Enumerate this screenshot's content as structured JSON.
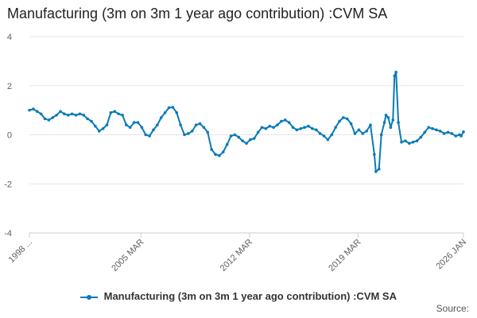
{
  "title": "Manufacturing (3m on 3m 1 year ago contribution) :CVM SA",
  "source_label": "Source:",
  "colors": {
    "series": "#0a7ab8",
    "grid": "#e6e6e6",
    "axis": "#cccccc",
    "text": "#606060"
  },
  "chart_data": {
    "type": "line",
    "title": "Manufacturing (3m on 3m 1 year ago contribution) :CVM SA",
    "xlabel": "",
    "ylabel": "",
    "ylim": [
      -4,
      4
    ],
    "yticks": [
      -4,
      -2,
      0,
      2,
      4
    ],
    "xlim": [
      1998.0,
      2026.0
    ],
    "xticks": [
      {
        "x": 1998.0,
        "label": "1998 ..."
      },
      {
        "x": 2005.2,
        "label": "2005 MAR"
      },
      {
        "x": 2012.2,
        "label": "2012 MAR"
      },
      {
        "x": 2019.2,
        "label": "2019 MAR"
      },
      {
        "x": 2026.0,
        "label": "2026 JAN"
      }
    ],
    "grid": "horizontal",
    "legend": "bottom",
    "series": [
      {
        "name": "Manufacturing (3m on 3m 1 year ago contribution) :CVM SA",
        "points": [
          [
            1998.0,
            1.0
          ],
          [
            1998.25,
            1.05
          ],
          [
            1998.5,
            0.95
          ],
          [
            1998.75,
            0.85
          ],
          [
            1999.0,
            0.65
          ],
          [
            1999.25,
            0.6
          ],
          [
            1999.5,
            0.7
          ],
          [
            1999.75,
            0.8
          ],
          [
            2000.0,
            0.95
          ],
          [
            2000.25,
            0.85
          ],
          [
            2000.5,
            0.8
          ],
          [
            2000.75,
            0.85
          ],
          [
            2001.0,
            0.8
          ],
          [
            2001.25,
            0.85
          ],
          [
            2001.5,
            0.8
          ],
          [
            2001.75,
            0.65
          ],
          [
            2002.0,
            0.55
          ],
          [
            2002.25,
            0.35
          ],
          [
            2002.5,
            0.15
          ],
          [
            2002.75,
            0.25
          ],
          [
            2003.0,
            0.4
          ],
          [
            2003.25,
            0.9
          ],
          [
            2003.5,
            0.95
          ],
          [
            2003.75,
            0.85
          ],
          [
            2004.0,
            0.8
          ],
          [
            2004.25,
            0.4
          ],
          [
            2004.5,
            0.3
          ],
          [
            2004.75,
            0.5
          ],
          [
            2005.0,
            0.5
          ],
          [
            2005.25,
            0.3
          ],
          [
            2005.5,
            0.0
          ],
          [
            2005.75,
            -0.05
          ],
          [
            2006.0,
            0.2
          ],
          [
            2006.25,
            0.4
          ],
          [
            2006.5,
            0.7
          ],
          [
            2006.75,
            0.9
          ],
          [
            2007.0,
            1.1
          ],
          [
            2007.25,
            1.12
          ],
          [
            2007.5,
            0.9
          ],
          [
            2007.75,
            0.4
          ],
          [
            2008.0,
            0.0
          ],
          [
            2008.25,
            0.05
          ],
          [
            2008.5,
            0.15
          ],
          [
            2008.75,
            0.4
          ],
          [
            2009.0,
            0.45
          ],
          [
            2009.25,
            0.3
          ],
          [
            2009.5,
            0.1
          ],
          [
            2009.75,
            -0.6
          ],
          [
            2010.0,
            -0.8
          ],
          [
            2010.25,
            -0.85
          ],
          [
            2010.5,
            -0.7
          ],
          [
            2010.75,
            -0.4
          ],
          [
            2011.0,
            -0.05
          ],
          [
            2011.25,
            0.0
          ],
          [
            2011.5,
            -0.1
          ],
          [
            2011.75,
            -0.25
          ],
          [
            2012.0,
            -0.35
          ],
          [
            2012.25,
            -0.2
          ],
          [
            2012.5,
            -0.15
          ],
          [
            2012.75,
            0.1
          ],
          [
            2013.0,
            0.3
          ],
          [
            2013.25,
            0.25
          ],
          [
            2013.5,
            0.35
          ],
          [
            2013.75,
            0.3
          ],
          [
            2014.0,
            0.4
          ],
          [
            2014.25,
            0.55
          ],
          [
            2014.5,
            0.6
          ],
          [
            2014.75,
            0.5
          ],
          [
            2015.0,
            0.3
          ],
          [
            2015.25,
            0.2
          ],
          [
            2015.5,
            0.25
          ],
          [
            2015.75,
            0.3
          ],
          [
            2016.0,
            0.35
          ],
          [
            2016.25,
            0.25
          ],
          [
            2016.5,
            0.2
          ],
          [
            2016.75,
            0.05
          ],
          [
            2017.0,
            -0.05
          ],
          [
            2017.25,
            -0.2
          ],
          [
            2017.5,
            0.0
          ],
          [
            2017.75,
            0.3
          ],
          [
            2018.0,
            0.55
          ],
          [
            2018.25,
            0.7
          ],
          [
            2018.5,
            0.65
          ],
          [
            2018.75,
            0.45
          ],
          [
            2019.0,
            0.05
          ],
          [
            2019.25,
            0.2
          ],
          [
            2019.5,
            0.05
          ],
          [
            2019.75,
            0.15
          ],
          [
            2020.0,
            0.4
          ],
          [
            2020.25,
            -0.8
          ],
          [
            2020.35,
            -1.5
          ],
          [
            2020.55,
            -1.4
          ],
          [
            2020.7,
            0.0
          ],
          [
            2020.9,
            0.5
          ],
          [
            2021.0,
            0.8
          ],
          [
            2021.15,
            0.7
          ],
          [
            2021.3,
            0.3
          ],
          [
            2021.45,
            0.6
          ],
          [
            2021.55,
            2.4
          ],
          [
            2021.65,
            2.55
          ],
          [
            2021.8,
            0.5
          ],
          [
            2022.0,
            -0.3
          ],
          [
            2022.25,
            -0.25
          ],
          [
            2022.5,
            -0.35
          ],
          [
            2022.75,
            -0.3
          ],
          [
            2023.0,
            -0.25
          ],
          [
            2023.25,
            -0.1
          ],
          [
            2023.5,
            0.1
          ],
          [
            2023.75,
            0.3
          ],
          [
            2024.0,
            0.25
          ],
          [
            2024.25,
            0.2
          ],
          [
            2024.5,
            0.15
          ],
          [
            2024.75,
            0.05
          ],
          [
            2025.0,
            0.1
          ],
          [
            2025.25,
            0.05
          ],
          [
            2025.5,
            -0.05
          ],
          [
            2025.75,
            0.0
          ],
          [
            2025.85,
            -0.05
          ],
          [
            2026.0,
            0.12
          ]
        ]
      }
    ]
  }
}
